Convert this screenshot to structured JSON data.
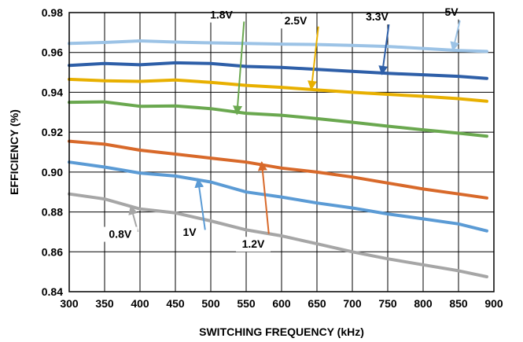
{
  "chart_data": {
    "type": "line",
    "title": "",
    "xlabel": "SWITCHING FREQUENCY (kHz)",
    "ylabel": "EFFICIENCY (%)",
    "xlim": [
      300,
      900
    ],
    "ylim": [
      0.84,
      0.98
    ],
    "x_ticks": [
      300,
      350,
      400,
      450,
      500,
      550,
      600,
      650,
      700,
      750,
      800,
      850,
      900
    ],
    "y_ticks": [
      "0.84",
      "0.86",
      "0.88",
      "0.90",
      "0.92",
      "0.94",
      "0.96",
      "0.98"
    ],
    "grid": true,
    "legend": "none",
    "series": [
      {
        "name": "5V",
        "color": "#9cc3e6",
        "x": [
          300,
          350,
          400,
          450,
          500,
          550,
          600,
          650,
          700,
          750,
          800,
          850,
          890
        ],
        "y": [
          0.9645,
          0.965,
          0.9658,
          0.9652,
          0.9648,
          0.9645,
          0.9642,
          0.964,
          0.9635,
          0.963,
          0.962,
          0.961,
          0.9605
        ]
      },
      {
        "name": "3.3V",
        "color": "#2e5fa8",
        "x": [
          300,
          350,
          400,
          450,
          500,
          550,
          600,
          650,
          700,
          750,
          800,
          850,
          890
        ],
        "y": [
          0.9535,
          0.9545,
          0.9538,
          0.9548,
          0.9545,
          0.953,
          0.9525,
          0.9515,
          0.9505,
          0.9495,
          0.9488,
          0.948,
          0.947
        ]
      },
      {
        "name": "2.5V",
        "color": "#e8b000",
        "x": [
          300,
          350,
          400,
          450,
          500,
          550,
          600,
          650,
          700,
          750,
          800,
          850,
          890
        ],
        "y": [
          0.9465,
          0.9458,
          0.9455,
          0.9462,
          0.945,
          0.9435,
          0.9425,
          0.9412,
          0.94,
          0.939,
          0.938,
          0.9368,
          0.9355
        ]
      },
      {
        "name": "1.8V",
        "color": "#6aa84f",
        "x": [
          300,
          350,
          400,
          450,
          500,
          550,
          600,
          650,
          700,
          750,
          800,
          850,
          890
        ],
        "y": [
          0.935,
          0.9352,
          0.933,
          0.9332,
          0.9318,
          0.9295,
          0.9285,
          0.9268,
          0.925,
          0.923,
          0.9212,
          0.9195,
          0.918
        ]
      },
      {
        "name": "1.2V",
        "color": "#d8692a",
        "x": [
          300,
          350,
          400,
          450,
          500,
          550,
          600,
          650,
          700,
          750,
          800,
          850,
          890
        ],
        "y": [
          0.9155,
          0.914,
          0.911,
          0.909,
          0.907,
          0.905,
          0.902,
          0.9,
          0.8975,
          0.8945,
          0.8915,
          0.889,
          0.887
        ]
      },
      {
        "name": "1V",
        "color": "#5b9bd5",
        "x": [
          300,
          350,
          400,
          450,
          500,
          550,
          600,
          650,
          700,
          750,
          800,
          850,
          890
        ],
        "y": [
          0.905,
          0.9025,
          0.8995,
          0.898,
          0.895,
          0.89,
          0.8875,
          0.8845,
          0.882,
          0.879,
          0.8765,
          0.874,
          0.8705
        ]
      },
      {
        "name": "0.8V",
        "color": "#a6a6a6",
        "x": [
          300,
          350,
          400,
          450,
          500,
          550,
          600,
          650,
          700,
          750,
          800,
          850,
          890
        ],
        "y": [
          0.889,
          0.8865,
          0.8815,
          0.8795,
          0.8755,
          0.871,
          0.868,
          0.864,
          0.86,
          0.8565,
          0.8535,
          0.8505,
          0.8475
        ]
      }
    ],
    "annotations": [
      {
        "label": "5V",
        "color": "#9cc3e6",
        "text_xy": [
          852,
          0.976
        ],
        "arrow_tip": [
          842,
          0.961
        ],
        "label_xy": [
          840,
          0.9785
        ]
      },
      {
        "label": "3.3V",
        "color": "#2e5fa8",
        "text_xy": [
          752,
          0.975
        ],
        "arrow_tip": [
          742,
          0.949
        ],
        "label_xy": [
          735,
          0.976
        ]
      },
      {
        "label": "2.5V",
        "color": "#e8b000",
        "text_xy": [
          652,
          0.973
        ],
        "arrow_tip": [
          642,
          0.9415
        ],
        "label_xy": [
          620,
          0.974
        ]
      },
      {
        "label": "1.8V",
        "color": "#6aa84f",
        "text_xy": [
          547,
          0.9755
        ],
        "arrow_tip": [
          537,
          0.929
        ],
        "label_xy": [
          515,
          0.977
        ]
      },
      {
        "label": "1.2V",
        "color": "#d8692a",
        "text_xy": [
          582,
          0.869
        ],
        "arrow_tip": [
          572,
          0.905
        ],
        "label_xy": [
          560,
          0.862
        ]
      },
      {
        "label": "1V",
        "color": "#5b9bd5",
        "text_xy": [
          492,
          0.871
        ],
        "arrow_tip": [
          482,
          0.8965
        ],
        "label_xy": [
          470,
          0.868
        ]
      },
      {
        "label": "0.8V",
        "color": "#a6a6a6",
        "text_xy": [
          397,
          0.87
        ],
        "arrow_tip": [
          387,
          0.883
        ],
        "label_xy": [
          372,
          0.867
        ]
      }
    ]
  }
}
